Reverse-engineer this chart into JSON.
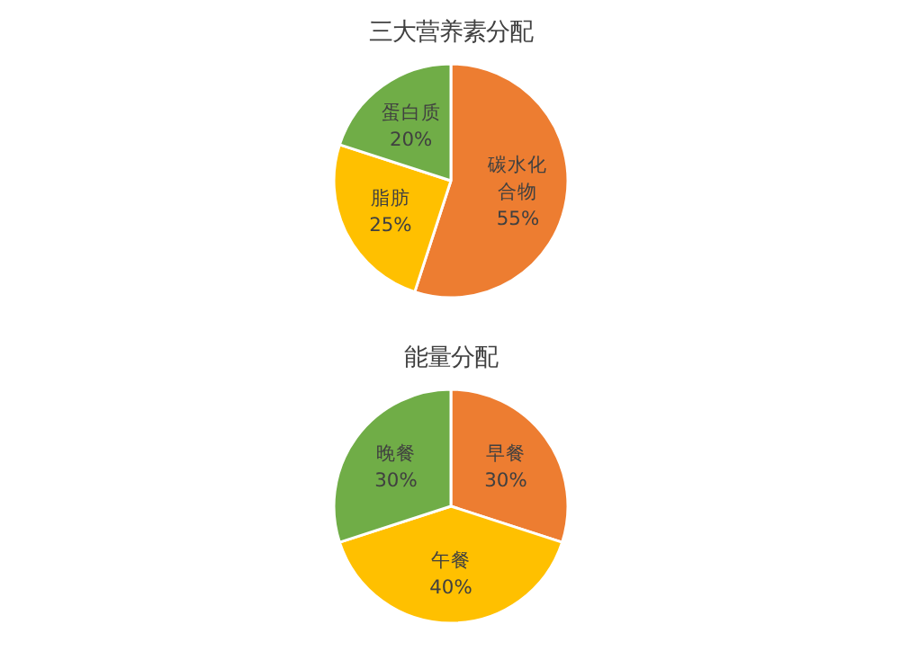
{
  "chart_data": [
    {
      "type": "pie",
      "title": "三大营养素分配",
      "categories": [
        "碳水化合物",
        "脂肪",
        "蛋白质"
      ],
      "values": [
        55,
        25,
        20
      ],
      "value_labels": [
        "55%",
        "25%",
        "20%"
      ],
      "colors": [
        "#ed7d31",
        "#ffc000",
        "#70ad47"
      ]
    },
    {
      "type": "pie",
      "title": "能量分配",
      "categories": [
        "早餐",
        "午餐",
        "晚餐"
      ],
      "values": [
        30,
        40,
        30
      ],
      "value_labels": [
        "30%",
        "40%",
        "30%"
      ],
      "colors": [
        "#ed7d31",
        "#ffc000",
        "#70ad47"
      ]
    }
  ]
}
